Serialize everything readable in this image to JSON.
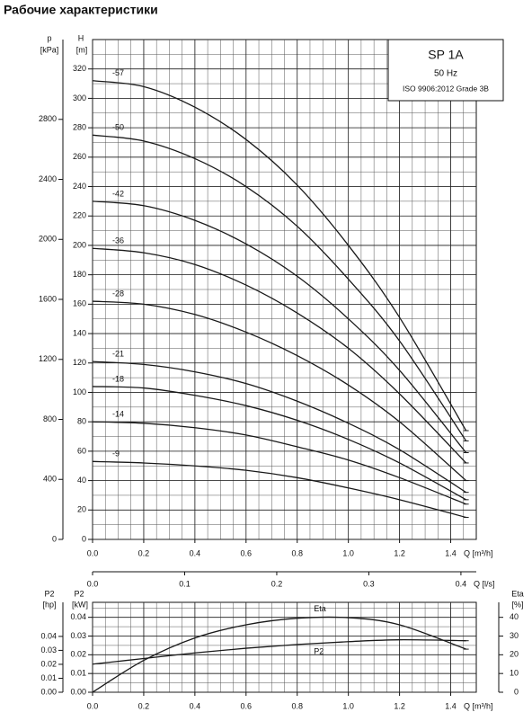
{
  "chart_data": [
    {
      "type": "line",
      "title": "Рабочие характеристики",
      "y_label": "H",
      "y_unit": "[m]",
      "y2_label": "p",
      "y2_unit": "[kPa]",
      "x_label": "Q [m³/h]",
      "x2_label": "Q [l/s]",
      "annotations": [
        "SP 1A",
        "50 Hz",
        "ISO 9906:2012 Grade 3B"
      ],
      "x": [
        0,
        0.2,
        0.4,
        0.6,
        0.8,
        1.0,
        1.2,
        1.46
      ],
      "xlim": [
        0,
        1.5
      ],
      "xticks": [
        {
          "value": 0,
          "label": "0.0"
        },
        {
          "value": 0.2,
          "label": "0.2"
        },
        {
          "value": 0.4,
          "label": "0.4"
        },
        {
          "value": 0.6,
          "label": "0.6"
        },
        {
          "value": 0.8,
          "label": "0.8"
        },
        {
          "value": 1.0,
          "label": "1.0"
        },
        {
          "value": 1.2,
          "label": "1.2"
        },
        {
          "value": 1.4,
          "label": "1.4"
        }
      ],
      "x2lim": [
        0,
        0.41667
      ],
      "x2ticks": [
        {
          "value": 0,
          "label": "0.0"
        },
        {
          "value": 0.1,
          "label": "0.1"
        },
        {
          "value": 0.2,
          "label": "0.2"
        },
        {
          "value": 0.3,
          "label": "0.3"
        },
        {
          "value": 0.4,
          "label": "0.4"
        }
      ],
      "ylim": [
        0,
        340
      ],
      "yticks": [
        0,
        20,
        40,
        60,
        80,
        100,
        120,
        140,
        160,
        180,
        200,
        220,
        240,
        260,
        280,
        300,
        320
      ],
      "y2lim": [
        0,
        3332
      ],
      "y2ticks": [
        0,
        400,
        800,
        1200,
        1600,
        2000,
        2400,
        2800
      ],
      "grid": true,
      "minor_grid": true,
      "series": [
        {
          "name": "-57",
          "color": "#1a1a1a",
          "values": [
            312,
            308,
            294,
            272,
            241,
            200,
            151,
            74
          ]
        },
        {
          "name": "-50",
          "color": "#1a1a1a",
          "values": [
            275,
            271,
            259,
            240,
            213,
            177,
            135,
            67
          ]
        },
        {
          "name": "-42",
          "color": "#1a1a1a",
          "values": [
            230,
            227,
            217,
            201,
            179,
            150,
            115,
            59
          ]
        },
        {
          "name": "-36",
          "color": "#1a1a1a",
          "values": [
            198,
            195,
            187,
            173,
            154,
            130,
            99,
            52
          ]
        },
        {
          "name": "-28",
          "color": "#1a1a1a",
          "values": [
            162,
            160,
            153,
            141,
            125,
            105,
            80,
            40
          ]
        },
        {
          "name": "-21",
          "color": "#1a1a1a",
          "values": [
            121,
            119,
            114,
            106,
            94,
            79,
            61,
            32
          ]
        },
        {
          "name": "-18",
          "color": "#1a1a1a",
          "values": [
            104,
            103,
            98,
            91,
            81,
            68,
            52,
            27
          ]
        },
        {
          "name": "-14",
          "color": "#1a1a1a",
          "values": [
            80,
            79,
            76,
            71,
            63,
            54,
            42,
            24
          ]
        },
        {
          "name": "-9",
          "color": "#1a1a1a",
          "values": [
            53,
            52,
            50,
            47,
            42,
            35,
            27,
            15
          ]
        }
      ]
    },
    {
      "type": "line",
      "y_label": "P2",
      "y_unit": "[kW]",
      "y2_label": "Eta",
      "y2_unit": "[%]",
      "y3_label": "P2",
      "y3_unit": "[hp]",
      "x_label": "Q [m³/h]",
      "x": [
        0,
        0.2,
        0.4,
        0.6,
        0.8,
        1.0,
        1.2,
        1.46
      ],
      "xlim": [
        0,
        1.5
      ],
      "xticks": [
        {
          "value": 0,
          "label": "0.0"
        },
        {
          "value": 0.2,
          "label": "0.2"
        },
        {
          "value": 0.4,
          "label": "0.4"
        },
        {
          "value": 0.6,
          "label": "0.6"
        },
        {
          "value": 0.8,
          "label": "0.8"
        },
        {
          "value": 1.0,
          "label": "1.0"
        },
        {
          "value": 1.2,
          "label": "1.2"
        },
        {
          "value": 1.4,
          "label": "1.4"
        }
      ],
      "ylim": [
        0,
        0.048
      ],
      "yticks": [
        {
          "value": 0,
          "label": "0.00"
        },
        {
          "value": 0.01,
          "label": "0.01"
        },
        {
          "value": 0.02,
          "label": "0.02"
        },
        {
          "value": 0.03,
          "label": "0.03"
        },
        {
          "value": 0.04,
          "label": "0.04"
        }
      ],
      "y2lim": [
        0,
        48
      ],
      "y2ticks": [
        0,
        10,
        20,
        30,
        40
      ],
      "y3lim": [
        0,
        0.0644
      ],
      "y3ticks": [
        {
          "value": 0,
          "label": "0.00"
        },
        {
          "value": 0.01,
          "label": "0.01"
        },
        {
          "value": 0.02,
          "label": "0.02"
        },
        {
          "value": 0.03,
          "label": "0.03"
        },
        {
          "value": 0.04,
          "label": "0.04"
        }
      ],
      "grid": true,
      "minor_grid": true,
      "series": [
        {
          "name": "Eta",
          "color": "#1a1a1a",
          "axis": "y2",
          "values": [
            0,
            17,
            29,
            36,
            39.5,
            39.8,
            36,
            23
          ]
        },
        {
          "name": "P2",
          "color": "#1a1a1a",
          "values": [
            0.015,
            0.018,
            0.021,
            0.0235,
            0.0255,
            0.027,
            0.028,
            0.0275
          ]
        }
      ]
    }
  ]
}
